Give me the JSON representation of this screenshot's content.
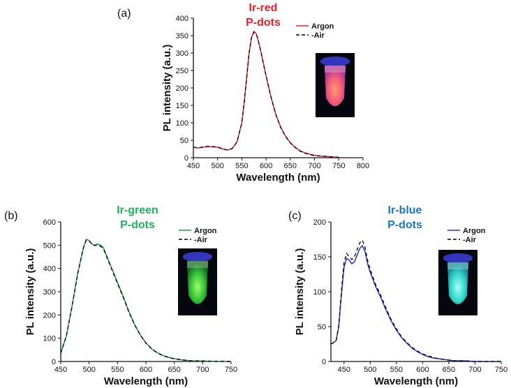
{
  "chart_data": [
    {
      "type": "line",
      "panel_label": "(a)",
      "title": [
        "Ir-red",
        "P-dots"
      ],
      "title_color": "#e8202a",
      "xlabel": "Wavelength (nm)",
      "ylabel": "PL intensity (a.u.)",
      "xlim": [
        450,
        800
      ],
      "ylim": [
        0,
        400
      ],
      "xticks": [
        450,
        500,
        550,
        600,
        650,
        700,
        750,
        800
      ],
      "yticks": [
        0,
        50,
        100,
        150,
        200,
        250,
        300,
        350,
        400
      ],
      "legend": "top-right",
      "inset": "vial-red",
      "series": [
        {
          "name": "Argon",
          "color": "#e8202a",
          "style": "solid",
          "x": [
            450,
            460,
            470,
            480,
            490,
            500,
            510,
            520,
            530,
            540,
            550,
            555,
            560,
            565,
            570,
            575,
            580,
            585,
            590,
            600,
            610,
            620,
            630,
            640,
            650,
            660,
            670,
            680,
            690,
            700,
            710,
            720,
            730,
            740,
            750
          ],
          "y": [
            30,
            28,
            30,
            32,
            31,
            30,
            25,
            22,
            26,
            45,
            100,
            160,
            230,
            300,
            345,
            362,
            355,
            330,
            300,
            235,
            175,
            125,
            88,
            62,
            43,
            30,
            20,
            14,
            10,
            7,
            5,
            4,
            3,
            2,
            1
          ]
        },
        {
          "name": "Air",
          "color": "#000000",
          "style": "dashed",
          "x": [
            450,
            460,
            470,
            480,
            490,
            500,
            510,
            520,
            530,
            540,
            550,
            555,
            560,
            565,
            570,
            575,
            580,
            585,
            590,
            600,
            610,
            620,
            630,
            640,
            650,
            660,
            670,
            680,
            690,
            700,
            710,
            720,
            730,
            740,
            750
          ],
          "y": [
            30,
            28,
            31,
            33,
            32,
            31,
            26,
            22,
            26,
            45,
            100,
            160,
            230,
            300,
            344,
            360,
            354,
            329,
            299,
            234,
            174,
            124,
            87,
            61,
            42,
            29,
            19,
            13,
            9,
            6,
            5,
            4,
            3,
            2,
            1
          ]
        }
      ]
    },
    {
      "type": "line",
      "panel_label": "(b)",
      "title": [
        "Ir-green",
        "P-dots"
      ],
      "title_color": "#1fb25a",
      "xlabel": "Wavelength (nm)",
      "ylabel": "PL intensity (a.u.)",
      "xlim": [
        450,
        750
      ],
      "ylim": [
        0,
        600
      ],
      "xticks": [
        450,
        500,
        550,
        600,
        650,
        700,
        750
      ],
      "yticks": [
        0,
        100,
        200,
        300,
        400,
        500,
        600
      ],
      "legend": "top-right",
      "inset": "vial-green",
      "series": [
        {
          "name": "Argon",
          "color": "#1f9a3a",
          "style": "solid",
          "x": [
            450,
            460,
            470,
            480,
            490,
            495,
            500,
            505,
            510,
            515,
            520,
            525,
            530,
            540,
            550,
            560,
            570,
            580,
            590,
            600,
            610,
            620,
            630,
            640,
            650,
            660,
            670,
            680,
            700,
            720,
            750
          ],
          "y": [
            35,
            110,
            240,
            380,
            490,
            525,
            520,
            505,
            500,
            505,
            500,
            490,
            460,
            400,
            340,
            280,
            215,
            160,
            115,
            80,
            55,
            38,
            26,
            18,
            12,
            8,
            5,
            3,
            2,
            1,
            0
          ]
        },
        {
          "name": "Air",
          "color": "#000000",
          "style": "dashed",
          "x": [
            450,
            460,
            470,
            480,
            490,
            495,
            500,
            505,
            510,
            515,
            520,
            525,
            530,
            540,
            550,
            560,
            570,
            580,
            590,
            600,
            610,
            620,
            630,
            640,
            650,
            660,
            670,
            680,
            700,
            720,
            750
          ],
          "y": [
            35,
            110,
            238,
            378,
            488,
            522,
            518,
            503,
            498,
            502,
            496,
            485,
            455,
            395,
            335,
            276,
            212,
            158,
            113,
            79,
            54,
            37,
            25,
            17,
            11,
            8,
            5,
            3,
            2,
            1,
            0
          ]
        }
      ]
    },
    {
      "type": "line",
      "panel_label": "(c)",
      "title": [
        "Ir-blue",
        "P-dots"
      ],
      "title_color": "#1a78c2",
      "xlabel": "Wavelength (nm)",
      "ylabel": "PL intensity (a.u.)",
      "xlim": [
        425,
        750
      ],
      "ylim": [
        0,
        200
      ],
      "xticks": [
        450,
        500,
        550,
        600,
        650,
        700,
        750
      ],
      "yticks": [
        0,
        50,
        100,
        150,
        200
      ],
      "legend": "top-right",
      "inset": "vial-blue",
      "series": [
        {
          "name": "Argon",
          "color": "#2233cc",
          "style": "solid",
          "x": [
            425,
            430,
            435,
            440,
            445,
            450,
            455,
            460,
            465,
            470,
            475,
            480,
            485,
            490,
            495,
            500,
            505,
            510,
            520,
            530,
            540,
            550,
            560,
            570,
            580,
            590,
            600,
            610,
            620,
            630,
            640,
            650,
            660,
            680,
            700,
            720,
            750
          ],
          "y": [
            25,
            27,
            30,
            50,
            95,
            135,
            148,
            145,
            140,
            143,
            152,
            162,
            166,
            158,
            140,
            128,
            118,
            108,
            92,
            74,
            58,
            45,
            34,
            26,
            19,
            14,
            10,
            7,
            5,
            4,
            3,
            2,
            1,
            1,
            0,
            0,
            0
          ]
        },
        {
          "name": "Air",
          "color": "#000000",
          "style": "dashed",
          "x": [
            425,
            430,
            435,
            440,
            445,
            450,
            455,
            460,
            465,
            470,
            475,
            480,
            485,
            490,
            495,
            500,
            505,
            510,
            520,
            530,
            540,
            550,
            560,
            570,
            580,
            590,
            600,
            610,
            620,
            630,
            640,
            650,
            660,
            680,
            700,
            720,
            750
          ],
          "y": [
            25,
            27,
            30,
            52,
            100,
            142,
            155,
            150,
            146,
            150,
            160,
            170,
            174,
            164,
            145,
            132,
            121,
            111,
            95,
            77,
            60,
            47,
            35,
            27,
            20,
            15,
            11,
            8,
            6,
            4,
            3,
            2,
            1,
            1,
            0,
            0,
            0
          ]
        }
      ]
    }
  ]
}
